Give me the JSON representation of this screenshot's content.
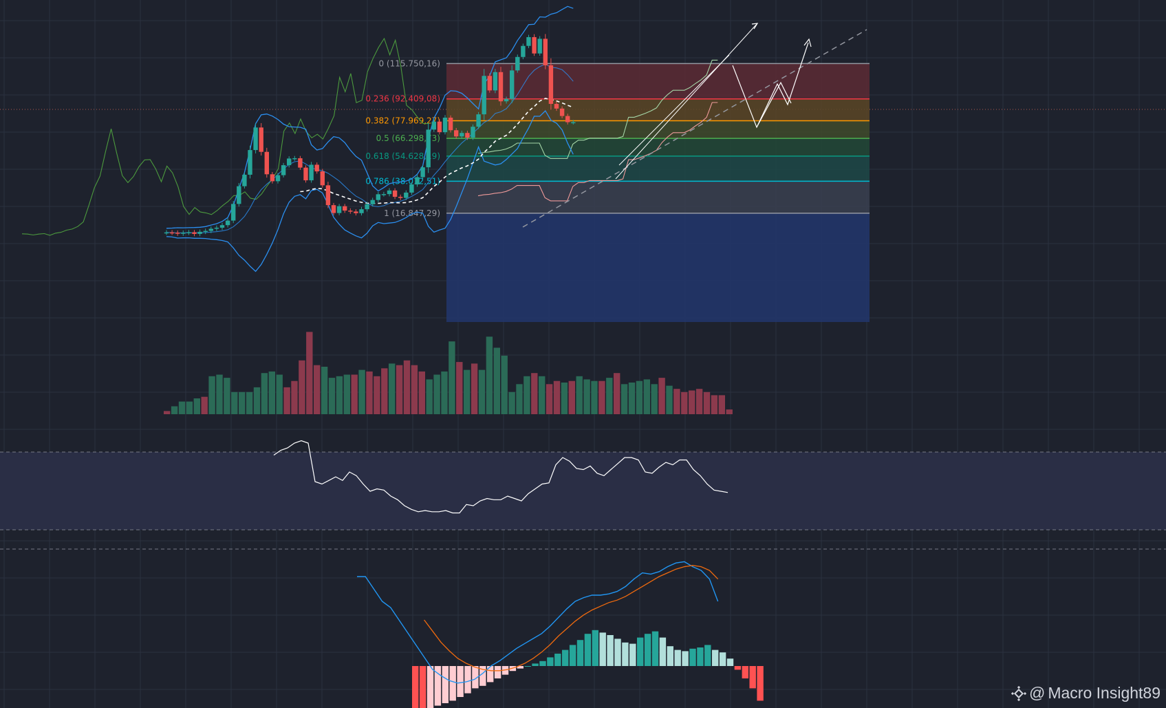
{
  "watermark": {
    "at": "@",
    "text": "Macro Insight89"
  },
  "colors": {
    "background": "#1e222d",
    "grid": "#2b3140",
    "up": "#26a69a",
    "down": "#ef5350",
    "bollinger": "#2b8ff0",
    "ichimoku_span": "#4c9a3e",
    "ema": "#ffffff",
    "macd": "#2196f3",
    "signal": "#f06a0e",
    "rsi_line": "#ffffff"
  },
  "chart_data": [
    {
      "type": "candlestick",
      "panel": "price",
      "x": [
        0,
        1,
        2,
        3,
        4,
        5,
        6,
        7,
        8,
        9,
        10,
        11,
        12,
        13,
        14,
        15,
        16,
        17,
        18,
        19,
        20,
        21,
        22,
        23,
        24,
        25,
        26,
        27,
        28,
        29,
        30,
        31,
        32,
        33,
        34,
        35,
        36,
        37,
        38,
        39,
        40,
        41,
        42,
        43,
        44,
        45,
        46,
        47,
        48,
        49,
        50,
        51,
        52,
        53,
        54,
        55,
        56,
        57,
        58,
        59,
        60,
        61,
        62,
        63,
        64,
        65,
        66,
        67,
        68,
        69,
        70,
        71,
        72,
        73,
        74,
        75,
        76,
        77,
        78
      ],
      "open": [
        4.0,
        4.2,
        4.0,
        3.4,
        4.0,
        4.3,
        3.2,
        4.6,
        5.2,
        6.6,
        7.3,
        9.0,
        12.0,
        23.0,
        34.7,
        42.3,
        58.6,
        73.5,
        57.4,
        42.6,
        38.0,
        42.0,
        48.6,
        53.0,
        53.2,
        47.0,
        38.6,
        48.9,
        44.5,
        35.3,
        22.2,
        17.0,
        21.5,
        18.6,
        18.0,
        16.9,
        19.5,
        22.8,
        25.6,
        29.4,
        29.5,
        31.9,
        27.7,
        27.0,
        30.5,
        35.9,
        40.7,
        47.2,
        72.1,
        77.4,
        70.4,
        80.0,
        71.7,
        67.6,
        69.9,
        66.8,
        74.0,
        82.2,
        107.6,
        98.0,
        110.1,
        90.8,
        92.4,
        111.2,
        120.1,
        127.4,
        133.2,
        122.4,
        132.1,
        114.6,
        89.1,
        86.0,
        81.1,
        77.0,
        -1,
        -1,
        -1,
        -1,
        -1
      ],
      "close": [
        4.2,
        4.0,
        3.4,
        4.0,
        4.3,
        3.2,
        4.6,
        5.2,
        6.6,
        7.3,
        9.0,
        12.0,
        23.0,
        34.7,
        42.3,
        58.6,
        73.5,
        57.4,
        42.6,
        38.0,
        42.0,
        48.6,
        53.0,
        53.2,
        47.0,
        38.6,
        48.9,
        44.5,
        35.3,
        22.2,
        17.0,
        21.5,
        18.6,
        18.0,
        16.9,
        19.5,
        22.8,
        25.6,
        29.4,
        29.5,
        31.9,
        27.7,
        27.0,
        30.5,
        35.9,
        40.7,
        47.2,
        72.1,
        77.4,
        70.4,
        80.0,
        71.7,
        67.6,
        69.9,
        66.8,
        74.0,
        82.2,
        107.6,
        98.0,
        110.1,
        90.8,
        92.4,
        111.2,
        120.1,
        127.4,
        133.2,
        122.4,
        132.1,
        114.6,
        89.1,
        86.0,
        81.1,
        77.0,
        77.0,
        -1,
        -1,
        -1,
        -1,
        -1
      ],
      "ylabel": "",
      "grid": true
    },
    {
      "type": "fibonacci",
      "panel": "price",
      "levels": [
        {
          "ratio": "0",
          "label": "0 (115.750,16)",
          "value": 115750.16,
          "color": "#9598a1"
        },
        {
          "ratio": "0.236",
          "label": "0.236 (92.409,08)",
          "value": 92409.08,
          "color": "#f23645"
        },
        {
          "ratio": "0.382",
          "label": "0.382 (77.969,27)",
          "value": 77969.27,
          "color": "#ff9800"
        },
        {
          "ratio": "0.5",
          "label": "0.5 (66.298,73)",
          "value": 66298.73,
          "color": "#4caf50"
        },
        {
          "ratio": "0.618",
          "label": "0.618 (54.628,19)",
          "value": 54628.19,
          "color": "#089981"
        },
        {
          "ratio": "0.786",
          "label": "0.786 (38.012,51)",
          "value": 38012.51,
          "color": "#00bcd4"
        },
        {
          "ratio": "1",
          "label": "1 (16.847,29)",
          "value": 16847.29,
          "color": "#9598a1"
        }
      ]
    },
    {
      "type": "bar",
      "panel": "volume",
      "values": [
        2,
        5,
        8,
        8,
        10,
        11,
        24,
        25,
        23,
        14,
        14,
        14,
        17,
        26,
        27,
        25,
        17,
        21,
        34,
        52,
        31,
        30,
        23,
        24,
        25,
        25,
        28,
        27,
        24,
        29,
        32,
        31,
        34,
        31,
        27,
        22,
        25,
        27,
        46,
        33,
        28,
        32,
        28,
        49,
        42,
        37,
        14,
        19,
        24,
        26,
        24,
        19,
        21,
        20,
        21,
        24,
        22,
        21,
        21,
        23,
        26,
        19,
        20,
        21,
        22,
        19,
        23,
        18,
        16,
        14,
        15,
        16,
        14,
        12,
        12,
        3
      ],
      "down": [
        1,
        0,
        0,
        0,
        0,
        1,
        0,
        0,
        0,
        0,
        0,
        0,
        0,
        0,
        0,
        0,
        1,
        1,
        1,
        1,
        1,
        0,
        0,
        0,
        0,
        1,
        0,
        1,
        1,
        1,
        0,
        1,
        1,
        1,
        1,
        0,
        0,
        0,
        0,
        1,
        0,
        1,
        0,
        0,
        0,
        0,
        0,
        0,
        0,
        1,
        0,
        1,
        1,
        0,
        1,
        0,
        0,
        0,
        1,
        0,
        1,
        0,
        0,
        0,
        0,
        0,
        1,
        0,
        1,
        1,
        1,
        1,
        1,
        1,
        1,
        1
      ]
    },
    {
      "type": "line",
      "panel": "rsi",
      "values": [
        62,
        66,
        68,
        72,
        74,
        72,
        40,
        38,
        41,
        44,
        41,
        48,
        45,
        38,
        32,
        34,
        33,
        28,
        25,
        20,
        17,
        15,
        16,
        15,
        15,
        16,
        14,
        14,
        21,
        20,
        24,
        26,
        25,
        25,
        28,
        26,
        24,
        30,
        34,
        38,
        39,
        54,
        60,
        57,
        51,
        50,
        53,
        47,
        45,
        50,
        55,
        60,
        60,
        58,
        48,
        47,
        52,
        56,
        54,
        58,
        58,
        50,
        45,
        38,
        33,
        32,
        31
      ]
    },
    {
      "type": "line",
      "panel": "macd",
      "series": [
        {
          "values": [
            5.0,
            5.0,
            4.0,
            3.0,
            2.5,
            1.5,
            0.5,
            -0.5,
            -1.5,
            -2.5,
            -3.0,
            -3.4,
            -3.6,
            -3.5,
            -3.3,
            -2.8,
            -2.2,
            -1.8,
            -1.3,
            -0.8,
            -0.4,
            0.0,
            0.4,
            1.0,
            1.7,
            2.4,
            3.0,
            3.3,
            3.5,
            3.5,
            3.6,
            3.8,
            4.2,
            4.8,
            5.3,
            5.2,
            5.4,
            5.8,
            6.1,
            6.2,
            5.8,
            5.5,
            4.8,
            3.0
          ]
        },
        {
          "values": [
            null,
            null,
            null,
            null,
            null,
            null,
            null,
            null,
            1.5,
            0.6,
            -0.3,
            -1.0,
            -1.6,
            -2.0,
            -2.3,
            -2.5,
            -2.6,
            -2.6,
            -2.5,
            -2.3,
            -2.0,
            -1.6,
            -1.1,
            -0.5,
            0.2,
            0.8,
            1.4,
            1.9,
            2.3,
            2.6,
            2.9,
            3.1,
            3.4,
            3.8,
            4.2,
            4.6,
            5.0,
            5.3,
            5.6,
            5.8,
            5.9,
            5.8,
            5.5,
            4.8
          ]
        }
      ],
      "histogram": [
        -3.5,
        -3.7,
        -3.5,
        -3.2,
        -3.0,
        -2.8,
        -2.5,
        -2.2,
        -1.8,
        -1.6,
        -1.3,
        -1.0,
        -0.7,
        -0.4,
        -0.2,
        0.0,
        0.2,
        0.4,
        0.7,
        1.0,
        1.3,
        1.7,
        2.1,
        2.6,
        2.9,
        2.7,
        2.5,
        2.2,
        1.9,
        1.8,
        2.3,
        2.6,
        2.8,
        2.3,
        1.6,
        1.3,
        1.2,
        1.4,
        1.5,
        1.7,
        1.3,
        1.1,
        0.6,
        -0.3,
        -1.0,
        -1.8,
        -2.8
      ]
    }
  ]
}
